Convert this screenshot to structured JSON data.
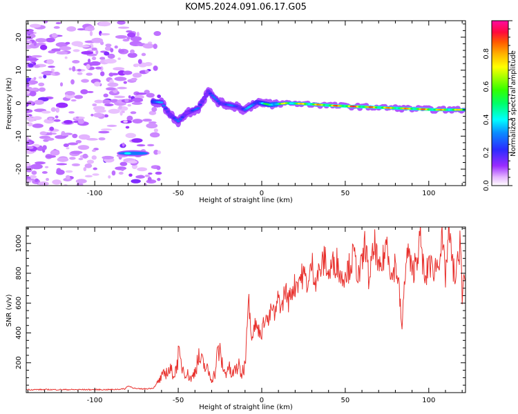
{
  "title": "KOM5.2024.091.06.17.G05",
  "chart_data": [
    {
      "type": "heatmap",
      "xlabel": "Height of straight line (km)",
      "ylabel": "Frequency (Hz)",
      "xlim": [
        -141,
        122
      ],
      "ylim": [
        -25,
        25
      ],
      "xticks": [
        -100,
        -50,
        0,
        50,
        100
      ],
      "yticks": [
        -20,
        -10,
        0,
        10,
        20
      ],
      "colorbar": {
        "label": "Normalized spectral amplitude",
        "ticks": [
          0.0,
          0.2,
          0.4,
          0.6,
          0.8
        ],
        "range": [
          0,
          1
        ],
        "colormap": "gist_ncar-like (white → violet → blue → cyan → green → yellow → orange → magenta)"
      },
      "ridge": [
        {
          "x": -65,
          "y": 0.5,
          "v": 0.45
        },
        {
          "x": -60,
          "y": 0.2,
          "v": 0.35
        },
        {
          "x": -55,
          "y": -3.5,
          "v": 0.3
        },
        {
          "x": -50,
          "y": -5.5,
          "v": 0.3
        },
        {
          "x": -45,
          "y": -3.0,
          "v": 0.25
        },
        {
          "x": -38,
          "y": -1.5,
          "v": 0.3
        },
        {
          "x": -32,
          "y": 3.5,
          "v": 0.25
        },
        {
          "x": -25,
          "y": 0.0,
          "v": 0.35
        },
        {
          "x": -15,
          "y": -1.0,
          "v": 0.3
        },
        {
          "x": -10,
          "y": -2.0,
          "v": 0.35
        },
        {
          "x": -3,
          "y": 0.3,
          "v": 0.4
        },
        {
          "x": 5,
          "y": -0.5,
          "v": 0.6
        },
        {
          "x": 15,
          "y": 0.0,
          "v": 0.75
        },
        {
          "x": 25,
          "y": -0.2,
          "v": 0.8
        },
        {
          "x": 35,
          "y": -0.5,
          "v": 0.85
        },
        {
          "x": 45,
          "y": -0.8,
          "v": 0.9
        },
        {
          "x": 55,
          "y": -1.0,
          "v": 0.95
        },
        {
          "x": 65,
          "y": -1.2,
          "v": 0.9
        },
        {
          "x": 75,
          "y": -1.4,
          "v": 0.85
        },
        {
          "x": 85,
          "y": -1.6,
          "v": 0.85
        },
        {
          "x": 95,
          "y": -1.8,
          "v": 0.9
        },
        {
          "x": 105,
          "y": -2.0,
          "v": 0.85
        },
        {
          "x": 115,
          "y": -2.0,
          "v": 0.8
        },
        {
          "x": 122,
          "y": -2.0,
          "v": 0.75
        }
      ],
      "features": [
        {
          "x": [
            -86,
            -68
          ],
          "y": -15.2,
          "v": 0.3,
          "note": "isolated band"
        }
      ]
    },
    {
      "type": "line",
      "xlabel": "Height of straight line (km)",
      "ylabel": "SNR (v/v)",
      "xlim": [
        -141,
        122
      ],
      "ylim": [
        0,
        1110
      ],
      "xticks": [
        -100,
        -50,
        0,
        50,
        100
      ],
      "yticks": [
        200,
        400,
        600,
        800,
        1000
      ],
      "line_color": "#e8302c",
      "x": [
        -141,
        -130,
        -120,
        -110,
        -100,
        -90,
        -82,
        -80,
        -75,
        -70,
        -65,
        -62,
        -60,
        -57,
        -55,
        -52,
        -50,
        -48,
        -45,
        -42,
        -40,
        -38,
        -35,
        -32,
        -30,
        -28,
        -26,
        -24,
        -22,
        -20,
        -18,
        -16,
        -14,
        -12,
        -10,
        -8,
        -6,
        -4,
        -2,
        0,
        2,
        4,
        6,
        8,
        10,
        12,
        14,
        16,
        18,
        20,
        22,
        25,
        28,
        30,
        32,
        35,
        38,
        40,
        42,
        45,
        48,
        50,
        52,
        55,
        58,
        60,
        62,
        64,
        66,
        68,
        70,
        72,
        75,
        78,
        80,
        82,
        84,
        86,
        88,
        90,
        92,
        95,
        98,
        100,
        102,
        105,
        108,
        110,
        112,
        114,
        116,
        118,
        119,
        120,
        121,
        122
      ],
      "values": [
        20,
        20,
        20,
        20,
        20,
        20,
        25,
        45,
        25,
        25,
        30,
        70,
        100,
        140,
        150,
        120,
        250,
        180,
        130,
        90,
        150,
        230,
        190,
        140,
        90,
        130,
        300,
        210,
        120,
        180,
        110,
        150,
        180,
        120,
        200,
        650,
        380,
        460,
        420,
        400,
        520,
        470,
        570,
        510,
        640,
        560,
        700,
        610,
        690,
        720,
        760,
        790,
        720,
        870,
        760,
        820,
        900,
        780,
        850,
        880,
        760,
        820,
        830,
        920,
        780,
        850,
        1020,
        760,
        880,
        1000,
        800,
        850,
        1020,
        760,
        880,
        720,
        420,
        850,
        950,
        780,
        880,
        1020,
        720,
        900,
        820,
        860,
        1000,
        780,
        1090,
        870,
        760,
        900,
        1110,
        600,
        740,
        760
      ]
    }
  ]
}
